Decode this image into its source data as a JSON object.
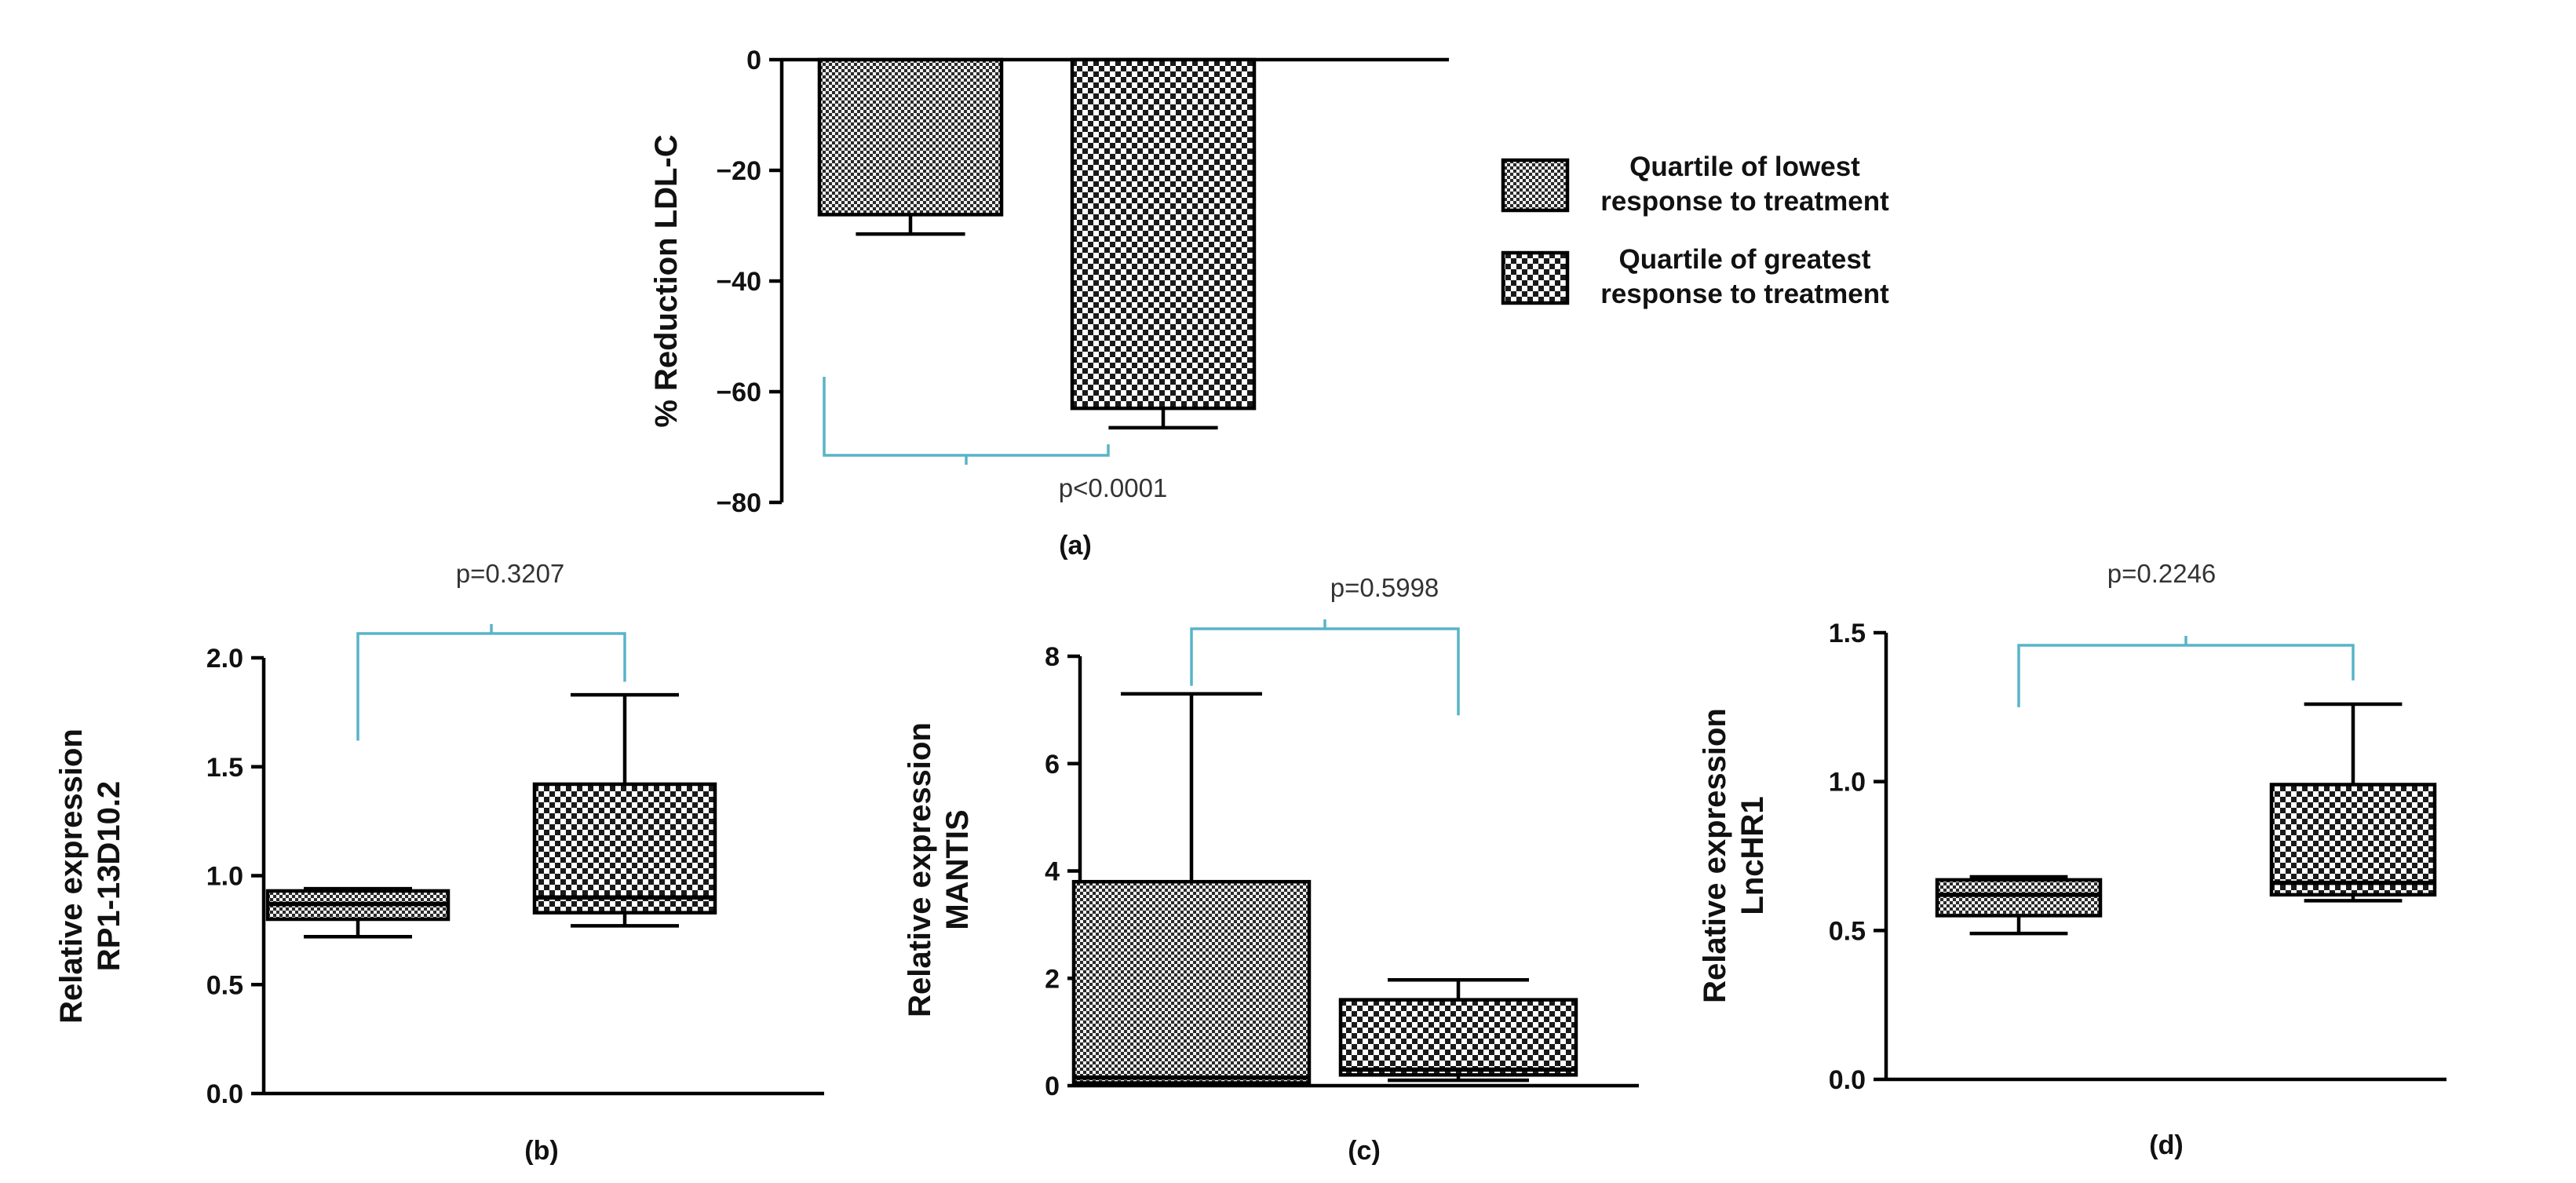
{
  "legend": {
    "items": [
      {
        "label_lines": [
          "Quartile of lowest",
          "response to treatment"
        ],
        "pattern": "lowest"
      },
      {
        "label_lines": [
          "Quartile of greatest",
          "response to treatment"
        ],
        "pattern": "greatest"
      }
    ]
  },
  "chart_data": [
    {
      "id": "a",
      "type": "bar",
      "panel_label": "(a)",
      "ylabel_lines": [
        "% Reduction LDL-C"
      ],
      "ylim": [
        -80,
        0
      ],
      "yticks": [
        0,
        -20,
        -40,
        -60,
        -80
      ],
      "ytick_labels": [
        "0",
        "−20",
        "−40",
        "−60",
        "−80"
      ],
      "categories": [
        "Quartile of lowest response to treatment",
        "Quartile of greatest response to treatment"
      ],
      "values": [
        -28,
        -63
      ],
      "error": [
        3.5,
        3.5
      ],
      "comparison": {
        "text": "p<0.0001",
        "bracket": "below"
      }
    },
    {
      "id": "b",
      "type": "box",
      "panel_label": "(b)",
      "ylabel_lines": [
        "Relative expression",
        "RP1-13D10.2"
      ],
      "ylim": [
        0,
        2.0
      ],
      "yticks": [
        0,
        0.5,
        1.0,
        1.5,
        2.0
      ],
      "ytick_labels": [
        "0.0",
        "0.5",
        "1.0",
        "1.5",
        "2.0"
      ],
      "categories": [
        "Quartile of lowest response to treatment",
        "Quartile of greatest response to treatment"
      ],
      "boxes": [
        {
          "min": 0.72,
          "q1": 0.8,
          "median": 0.87,
          "q3": 0.93,
          "max": 0.94
        },
        {
          "min": 0.77,
          "q1": 0.83,
          "median": 0.9,
          "q3": 1.42,
          "max": 1.83
        }
      ],
      "comparison": {
        "text": "p=0.3207",
        "bracket": "above",
        "left_end": 1.62,
        "right_end": 1.89
      }
    },
    {
      "id": "c",
      "type": "box",
      "panel_label": "(c)",
      "ylabel_lines": [
        "Relative expression",
        "MANTIS"
      ],
      "ylim": [
        0,
        8
      ],
      "yticks": [
        0,
        2,
        4,
        6,
        8
      ],
      "ytick_labels": [
        "0",
        "2",
        "4",
        "6",
        "8"
      ],
      "categories": [
        "Quartile of lowest response to treatment",
        "Quartile of greatest response to treatment"
      ],
      "boxes": [
        {
          "min": 0.05,
          "q1": 0.05,
          "median": 0.15,
          "q3": 3.8,
          "max": 7.3
        },
        {
          "min": 0.1,
          "q1": 0.2,
          "median": 0.3,
          "q3": 1.6,
          "max": 1.97
        }
      ],
      "comparison": {
        "text": "p=0.5998",
        "bracket": "above",
        "left_end": 7.45,
        "right_end": 6.9
      }
    },
    {
      "id": "d",
      "type": "box",
      "panel_label": "(d)",
      "ylabel_lines": [
        "Relative expression",
        "LncHR1"
      ],
      "ylim": [
        0,
        1.5
      ],
      "yticks": [
        0,
        0.5,
        1.0,
        1.5
      ],
      "ytick_labels": [
        "0.0",
        "0.5",
        "1.0",
        "1.5"
      ],
      "categories": [
        "Quartile of lowest response to treatment",
        "Quartile of greatest response to treatment"
      ],
      "boxes": [
        {
          "min": 0.49,
          "q1": 0.55,
          "median": 0.62,
          "q3": 0.67,
          "max": 0.68
        },
        {
          "min": 0.6,
          "q1": 0.62,
          "median": 0.66,
          "q3": 0.99,
          "max": 1.26
        }
      ],
      "comparison": {
        "text": "p=0.2246",
        "bracket": "above",
        "left_end": 1.25,
        "right_end": 1.34
      }
    }
  ]
}
